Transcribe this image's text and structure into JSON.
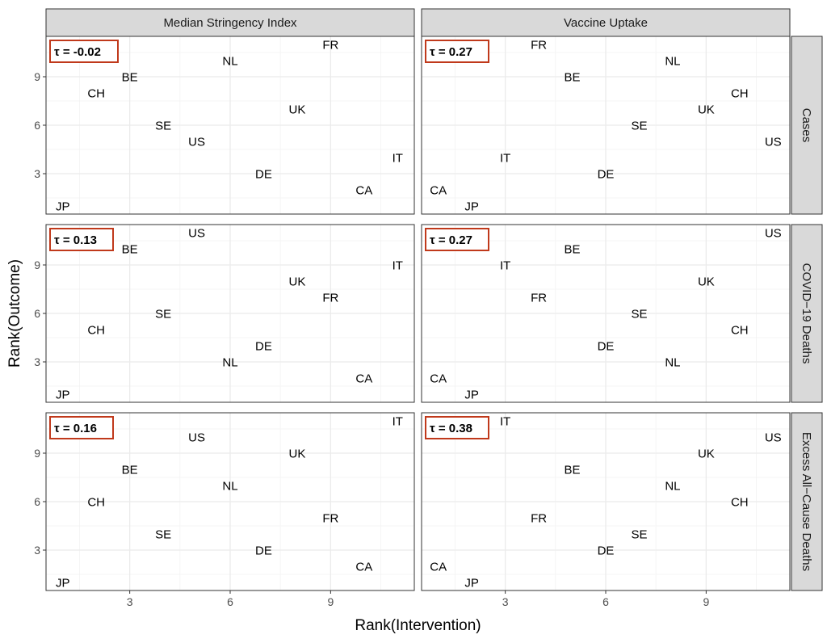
{
  "chart_data": {
    "type": "scatter",
    "title": "",
    "xlabel": "Rank(Intervention)",
    "ylabel": "Rank(Outcome)",
    "xlim": [
      0.5,
      11.5
    ],
    "ylim": [
      0.5,
      11.5
    ],
    "xticks": [
      3,
      6,
      9
    ],
    "yticks": [
      3,
      6,
      9
    ],
    "grid": true,
    "column_facets": [
      "Median Stringency Index",
      "Vaccine Uptake"
    ],
    "row_facets": [
      "Cases",
      "COVID−19 Deaths",
      "Excess All−Cause Deaths"
    ],
    "colors": {
      "tau_box": "#c0391b",
      "panel_border": "#333333",
      "strip_fill": "#d9d9d9",
      "grid": "#ebebeb"
    },
    "panels": [
      {
        "column": "Median Stringency Index",
        "row": "Cases",
        "tau": "τ = -0.02",
        "points": [
          {
            "label": "FR",
            "x": 9,
            "y": 11
          },
          {
            "label": "NL",
            "x": 6,
            "y": 10
          },
          {
            "label": "BE",
            "x": 3,
            "y": 9
          },
          {
            "label": "CH",
            "x": 2,
            "y": 8
          },
          {
            "label": "UK",
            "x": 8,
            "y": 7
          },
          {
            "label": "SE",
            "x": 4,
            "y": 6
          },
          {
            "label": "US",
            "x": 5,
            "y": 5
          },
          {
            "label": "IT",
            "x": 11,
            "y": 4
          },
          {
            "label": "DE",
            "x": 7,
            "y": 3
          },
          {
            "label": "CA",
            "x": 10,
            "y": 2
          },
          {
            "label": "JP",
            "x": 1,
            "y": 1
          }
        ]
      },
      {
        "column": "Vaccine Uptake",
        "row": "Cases",
        "tau": "τ = 0.27",
        "points": [
          {
            "label": "FR",
            "x": 4,
            "y": 11
          },
          {
            "label": "NL",
            "x": 8,
            "y": 10
          },
          {
            "label": "BE",
            "x": 5,
            "y": 9
          },
          {
            "label": "CH",
            "x": 10,
            "y": 8
          },
          {
            "label": "UK",
            "x": 9,
            "y": 7
          },
          {
            "label": "SE",
            "x": 7,
            "y": 6
          },
          {
            "label": "US",
            "x": 11,
            "y": 5
          },
          {
            "label": "IT",
            "x": 3,
            "y": 4
          },
          {
            "label": "DE",
            "x": 6,
            "y": 3
          },
          {
            "label": "CA",
            "x": 1,
            "y": 2
          },
          {
            "label": "JP",
            "x": 2,
            "y": 1
          }
        ]
      },
      {
        "column": "Median Stringency Index",
        "row": "COVID−19 Deaths",
        "tau": "τ = 0.13",
        "points": [
          {
            "label": "US",
            "x": 5,
            "y": 11
          },
          {
            "label": "BE",
            "x": 3,
            "y": 10
          },
          {
            "label": "IT",
            "x": 11,
            "y": 9
          },
          {
            "label": "UK",
            "x": 8,
            "y": 8
          },
          {
            "label": "FR",
            "x": 9,
            "y": 7
          },
          {
            "label": "SE",
            "x": 4,
            "y": 6
          },
          {
            "label": "CH",
            "x": 2,
            "y": 5
          },
          {
            "label": "DE",
            "x": 7,
            "y": 4
          },
          {
            "label": "NL",
            "x": 6,
            "y": 3
          },
          {
            "label": "CA",
            "x": 10,
            "y": 2
          },
          {
            "label": "JP",
            "x": 1,
            "y": 1
          }
        ]
      },
      {
        "column": "Vaccine Uptake",
        "row": "COVID−19 Deaths",
        "tau": "τ = 0.27",
        "points": [
          {
            "label": "US",
            "x": 11,
            "y": 11
          },
          {
            "label": "BE",
            "x": 5,
            "y": 10
          },
          {
            "label": "IT",
            "x": 3,
            "y": 9
          },
          {
            "label": "UK",
            "x": 9,
            "y": 8
          },
          {
            "label": "FR",
            "x": 4,
            "y": 7
          },
          {
            "label": "SE",
            "x": 7,
            "y": 6
          },
          {
            "label": "CH",
            "x": 10,
            "y": 5
          },
          {
            "label": "DE",
            "x": 6,
            "y": 4
          },
          {
            "label": "NL",
            "x": 8,
            "y": 3
          },
          {
            "label": "CA",
            "x": 1,
            "y": 2
          },
          {
            "label": "JP",
            "x": 2,
            "y": 1
          }
        ]
      },
      {
        "column": "Median Stringency Index",
        "row": "Excess All−Cause Deaths",
        "tau": "τ = 0.16",
        "points": [
          {
            "label": "IT",
            "x": 11,
            "y": 11
          },
          {
            "label": "US",
            "x": 5,
            "y": 10
          },
          {
            "label": "UK",
            "x": 8,
            "y": 9
          },
          {
            "label": "BE",
            "x": 3,
            "y": 8
          },
          {
            "label": "NL",
            "x": 6,
            "y": 7
          },
          {
            "label": "CH",
            "x": 2,
            "y": 6
          },
          {
            "label": "FR",
            "x": 9,
            "y": 5
          },
          {
            "label": "SE",
            "x": 4,
            "y": 4
          },
          {
            "label": "DE",
            "x": 7,
            "y": 3
          },
          {
            "label": "CA",
            "x": 10,
            "y": 2
          },
          {
            "label": "JP",
            "x": 1,
            "y": 1
          }
        ]
      },
      {
        "column": "Vaccine Uptake",
        "row": "Excess All−Cause Deaths",
        "tau": "τ = 0.38",
        "points": [
          {
            "label": "IT",
            "x": 3,
            "y": 11
          },
          {
            "label": "US",
            "x": 11,
            "y": 10
          },
          {
            "label": "UK",
            "x": 9,
            "y": 9
          },
          {
            "label": "BE",
            "x": 5,
            "y": 8
          },
          {
            "label": "NL",
            "x": 8,
            "y": 7
          },
          {
            "label": "CH",
            "x": 10,
            "y": 6
          },
          {
            "label": "FR",
            "x": 4,
            "y": 5
          },
          {
            "label": "SE",
            "x": 7,
            "y": 4
          },
          {
            "label": "DE",
            "x": 6,
            "y": 3
          },
          {
            "label": "CA",
            "x": 1,
            "y": 2
          },
          {
            "label": "JP",
            "x": 2,
            "y": 1
          }
        ]
      }
    ]
  }
}
